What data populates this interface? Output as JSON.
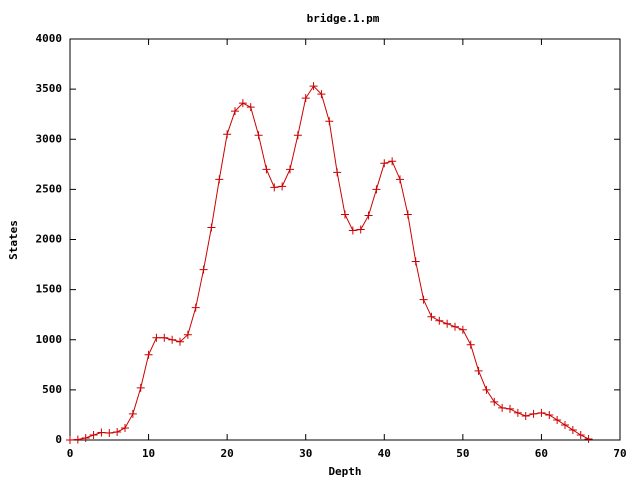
{
  "chart_data": {
    "type": "line",
    "title": "bridge.1.pm",
    "x_label": "Depth",
    "y_label": "States",
    "x": [
      0,
      1,
      2,
      3,
      4,
      5,
      6,
      7,
      8,
      9,
      10,
      11,
      12,
      13,
      14,
      15,
      16,
      17,
      18,
      19,
      20,
      21,
      22,
      23,
      24,
      25,
      26,
      27,
      28,
      29,
      30,
      31,
      32,
      33,
      34,
      35,
      36,
      37,
      38,
      39,
      40,
      41,
      42,
      43,
      44,
      45,
      46,
      47,
      48,
      49,
      50,
      51,
      52,
      53,
      54,
      55,
      56,
      57,
      58,
      59,
      60,
      61,
      62,
      63,
      64,
      65,
      66
    ],
    "series": [
      {
        "color": "#cc0000",
        "values": [
          0,
          5,
          20,
          50,
          75,
          70,
          80,
          120,
          260,
          520,
          850,
          1020,
          1020,
          1000,
          980,
          1050,
          1320,
          1700,
          2120,
          2600,
          3050,
          3280,
          3360,
          3320,
          3040,
          2700,
          2520,
          2530,
          2700,
          3040,
          3410,
          3530,
          3450,
          3180,
          2670,
          2250,
          2090,
          2100,
          2240,
          2500,
          2760,
          2780,
          2600,
          2250,
          1780,
          1400,
          1230,
          1190,
          1160,
          1130,
          1100,
          950,
          690,
          500,
          380,
          320,
          310,
          270,
          240,
          260,
          270,
          250,
          200,
          150,
          100,
          50,
          10
        ]
      }
    ],
    "xlim": [
      0,
      70
    ],
    "xticks": [
      0,
      10,
      20,
      30,
      40,
      50,
      60,
      70
    ],
    "ylim": [
      0,
      4000
    ],
    "yticks": [
      0,
      500,
      1000,
      1500,
      2000,
      2500,
      3000,
      3500,
      4000
    ],
    "grid": false
  }
}
